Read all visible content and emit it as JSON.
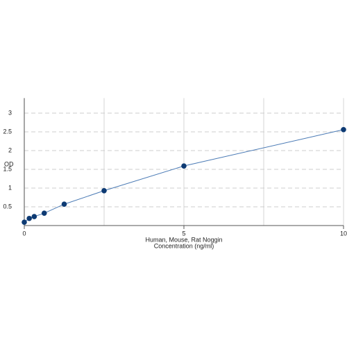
{
  "chart_data": {
    "type": "line",
    "xlabel": [
      "Human, Mouse, Rat Noggin",
      "Concentration (ng/ml)"
    ],
    "ylabel": "OD",
    "x": [
      0,
      0.156,
      0.312,
      0.625,
      1.25,
      2.5,
      5,
      10
    ],
    "series": [
      {
        "color": "#4a7ab5",
        "marker_color": "#0d3a73",
        "values": [
          0.09,
          0.19,
          0.24,
          0.33,
          0.57,
          0.93,
          1.59,
          2.56
        ]
      }
    ],
    "xlim": [
      0,
      10
    ],
    "xticks": [
      0,
      5,
      10
    ],
    "x_grid": [
      0,
      2.5,
      5,
      7.5,
      10
    ],
    "ylim": [
      0,
      3.4
    ],
    "yticks": [
      0.5,
      1,
      1.5,
      2,
      2.5,
      3
    ],
    "grid": true
  }
}
